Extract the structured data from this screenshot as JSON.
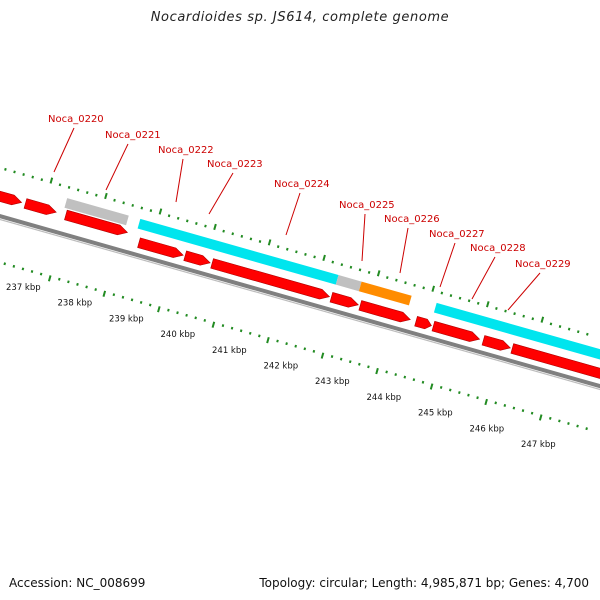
{
  "title": "Nocardioides sp. JS614, complete genome",
  "footer": {
    "accession": "Accession: NC_008699",
    "summary": "Topology: circular; Length: 4,985,871 bp; Genes: 4,700"
  },
  "colors": {
    "cds": "#ff0000",
    "gene_label": "#cc0000",
    "feature_gray": "#c0c0c0",
    "feature_cyan": "#00e5ee",
    "feature_orange": "#ff8c00",
    "backbone": "#808080",
    "tick": "#228b22",
    "kbp_label": "#111111"
  },
  "chart_data": {
    "type": "genome-map",
    "kbp_labels": [
      "237 kbp",
      "238 kbp",
      "239 kbp",
      "240 kbp",
      "241 kbp",
      "242 kbp",
      "243 kbp",
      "244 kbp",
      "245 kbp",
      "246 kbp",
      "247 kbp"
    ],
    "gene_labels": [
      "Noca_0220",
      "Noca_0221",
      "Noca_0222",
      "Noca_0223",
      "Noca_0224",
      "Noca_0225",
      "Noca_0226",
      "Noca_0227",
      "Noca_0228",
      "Noca_0229"
    ]
  }
}
